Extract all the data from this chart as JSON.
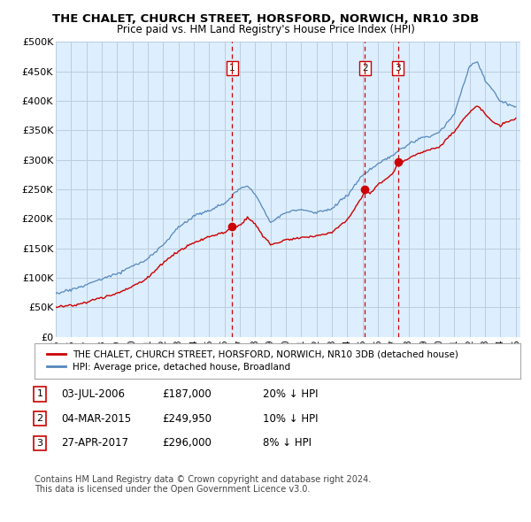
{
  "title": "THE CHALET, CHURCH STREET, HORSFORD, NORWICH, NR10 3DB",
  "subtitle": "Price paid vs. HM Land Registry's House Price Index (HPI)",
  "ylim": [
    0,
    500000
  ],
  "yticks": [
    0,
    50000,
    100000,
    150000,
    200000,
    250000,
    300000,
    350000,
    400000,
    450000,
    500000
  ],
  "ytick_labels": [
    "£0",
    "£50K",
    "£100K",
    "£150K",
    "£200K",
    "£250K",
    "£300K",
    "£350K",
    "£400K",
    "£450K",
    "£500K"
  ],
  "sale_color": "#cc0000",
  "hpi_color": "#5588bb",
  "hpi_fill_color": "#ddeeff",
  "vline_color": "#cc0000",
  "sales": [
    {
      "date_num": 2006.5,
      "price": 187000,
      "label": "1"
    },
    {
      "date_num": 2015.17,
      "price": 249950,
      "label": "2"
    },
    {
      "date_num": 2017.32,
      "price": 296000,
      "label": "3"
    }
  ],
  "legend_sale_label": "THE CHALET, CHURCH STREET, HORSFORD, NORWICH, NR10 3DB (detached house)",
  "legend_hpi_label": "HPI: Average price, detached house, Broadland",
  "table_rows": [
    [
      "1",
      "03-JUL-2006",
      "£187,000",
      "20% ↓ HPI"
    ],
    [
      "2",
      "04-MAR-2015",
      "£249,950",
      "10% ↓ HPI"
    ],
    [
      "3",
      "27-APR-2017",
      "£296,000",
      "8% ↓ HPI"
    ]
  ],
  "footnote": "Contains HM Land Registry data © Crown copyright and database right 2024.\nThis data is licensed under the Open Government Licence v3.0.",
  "background_color": "#ffffff",
  "chart_bg_color": "#ddeeff",
  "grid_color": "#bbccdd"
}
